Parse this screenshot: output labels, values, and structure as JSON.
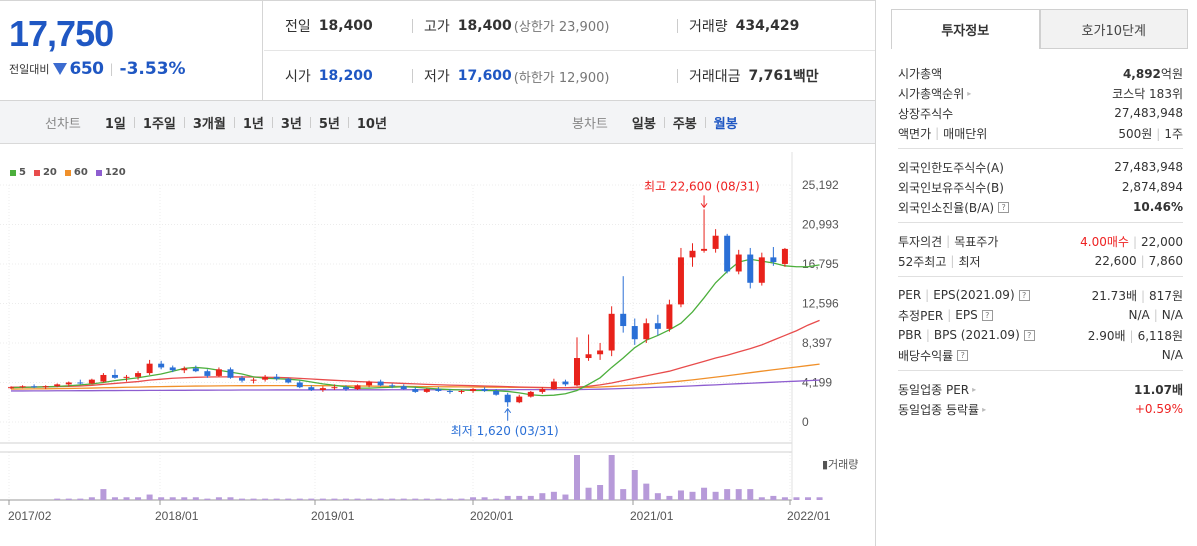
{
  "quote": {
    "price": "17,750",
    "diff_label": "전일대비",
    "diff_amount": "650",
    "diff_pct": "-3.53%",
    "prev_close_label": "전일",
    "prev_close": "18,400",
    "high_label": "고가",
    "high": "18,400",
    "upper_limit": "(상한가 23,900)",
    "volume_label": "거래량",
    "volume": "434,429",
    "open_label": "시가",
    "open": "18,200",
    "low_label": "저가",
    "low": "17,600",
    "lower_limit": "(하한가 12,900)",
    "amount_label": "거래대금",
    "amount": "7,761",
    "amount_unit": "백만"
  },
  "line_chart_tabs": {
    "title": "선차트",
    "items": [
      "1일",
      "1주일",
      "3개월",
      "1년",
      "3년",
      "5년",
      "10년"
    ]
  },
  "candle_chart_tabs": {
    "title": "봉차트",
    "items": [
      "일봉",
      "주봉",
      "월봉"
    ],
    "selected": "월봉"
  },
  "chart_data": {
    "type": "candlestick",
    "moving_average_legend": [
      "5",
      "20",
      "60",
      "120"
    ],
    "ma_colors": [
      "#4caf3c",
      "#e84c4c",
      "#f0902a",
      "#8e5ed0"
    ],
    "y_ticks": [
      "25,192",
      "20,993",
      "16,795",
      "12,596",
      "8,397",
      "4,199",
      "0"
    ],
    "ylim": [
      0,
      25192
    ],
    "x_ticks": [
      "2017/02",
      "2018/01",
      "2019/01",
      "2020/01",
      "2021/01",
      "2022/01"
    ],
    "high_annotation": "최고 22,600 (08/31)",
    "low_annotation": "최저 1,620 (03/31)",
    "volume_label": "거래량",
    "candles": [
      {
        "o": 3600,
        "h": 3800,
        "l": 3500,
        "c": 3700
      },
      {
        "o": 3700,
        "h": 3900,
        "l": 3600,
        "c": 3800
      },
      {
        "o": 3800,
        "h": 4000,
        "l": 3600,
        "c": 3700
      },
      {
        "o": 3700,
        "h": 3900,
        "l": 3500,
        "c": 3800
      },
      {
        "o": 3800,
        "h": 4100,
        "l": 3700,
        "c": 4000
      },
      {
        "o": 4000,
        "h": 4300,
        "l": 3800,
        "c": 4200
      },
      {
        "o": 4200,
        "h": 4500,
        "l": 4000,
        "c": 4100
      },
      {
        "o": 4100,
        "h": 4600,
        "l": 4000,
        "c": 4500
      },
      {
        "o": 4300,
        "h": 5200,
        "l": 4200,
        "c": 5000
      },
      {
        "o": 5000,
        "h": 5600,
        "l": 4600,
        "c": 4700
      },
      {
        "o": 4700,
        "h": 5000,
        "l": 4300,
        "c": 4800
      },
      {
        "o": 4800,
        "h": 5400,
        "l": 4500,
        "c": 5200
      },
      {
        "o": 5200,
        "h": 6600,
        "l": 5000,
        "c": 6200
      },
      {
        "o": 6200,
        "h": 6500,
        "l": 5600,
        "c": 5800
      },
      {
        "o": 5800,
        "h": 6000,
        "l": 5300,
        "c": 5500
      },
      {
        "o": 5500,
        "h": 5900,
        "l": 5200,
        "c": 5700
      },
      {
        "o": 5700,
        "h": 6000,
        "l": 5300,
        "c": 5400
      },
      {
        "o": 5400,
        "h": 5600,
        "l": 4700,
        "c": 4900
      },
      {
        "o": 4900,
        "h": 5800,
        "l": 4800,
        "c": 5600
      },
      {
        "o": 5600,
        "h": 5800,
        "l": 4600,
        "c": 4700
      },
      {
        "o": 4700,
        "h": 4900,
        "l": 4200,
        "c": 4400
      },
      {
        "o": 4400,
        "h": 4700,
        "l": 4100,
        "c": 4500
      },
      {
        "o": 4500,
        "h": 5000,
        "l": 4300,
        "c": 4800
      },
      {
        "o": 4800,
        "h": 5100,
        "l": 4400,
        "c": 4600
      },
      {
        "o": 4600,
        "h": 4700,
        "l": 4100,
        "c": 4200
      },
      {
        "o": 4200,
        "h": 4400,
        "l": 3600,
        "c": 3700
      },
      {
        "o": 3700,
        "h": 3900,
        "l": 3300,
        "c": 3400
      },
      {
        "o": 3400,
        "h": 3800,
        "l": 3200,
        "c": 3600
      },
      {
        "o": 3600,
        "h": 4000,
        "l": 3400,
        "c": 3700
      },
      {
        "o": 3700,
        "h": 3900,
        "l": 3300,
        "c": 3500
      },
      {
        "o": 3500,
        "h": 4000,
        "l": 3400,
        "c": 3900
      },
      {
        "o": 3900,
        "h": 4400,
        "l": 3700,
        "c": 4300
      },
      {
        "o": 4300,
        "h": 4500,
        "l": 3800,
        "c": 3900
      },
      {
        "o": 3900,
        "h": 4100,
        "l": 3600,
        "c": 3800
      },
      {
        "o": 3800,
        "h": 4000,
        "l": 3400,
        "c": 3500
      },
      {
        "o": 3500,
        "h": 3700,
        "l": 3100,
        "c": 3200
      },
      {
        "o": 3200,
        "h": 3600,
        "l": 3100,
        "c": 3500
      },
      {
        "o": 3500,
        "h": 3700,
        "l": 3200,
        "c": 3300
      },
      {
        "o": 3300,
        "h": 3500,
        "l": 3000,
        "c": 3200
      },
      {
        "o": 3200,
        "h": 3400,
        "l": 3000,
        "c": 3300
      },
      {
        "o": 3300,
        "h": 3600,
        "l": 3100,
        "c": 3500
      },
      {
        "o": 3500,
        "h": 3700,
        "l": 3200,
        "c": 3300
      },
      {
        "o": 3300,
        "h": 3500,
        "l": 2800,
        "c": 2900
      },
      {
        "o": 2900,
        "h": 3100,
        "l": 1620,
        "c": 2100
      },
      {
        "o": 2100,
        "h": 2900,
        "l": 2000,
        "c": 2700
      },
      {
        "o": 2700,
        "h": 3300,
        "l": 2600,
        "c": 3200
      },
      {
        "o": 3200,
        "h": 3700,
        "l": 3000,
        "c": 3500
      },
      {
        "o": 3500,
        "h": 4600,
        "l": 3400,
        "c": 4300
      },
      {
        "o": 4300,
        "h": 4500,
        "l": 3800,
        "c": 4000
      },
      {
        "o": 3900,
        "h": 9000,
        "l": 3800,
        "c": 6800
      },
      {
        "o": 6800,
        "h": 9300,
        "l": 6500,
        "c": 7200
      },
      {
        "o": 7200,
        "h": 8400,
        "l": 6600,
        "c": 7600
      },
      {
        "o": 7600,
        "h": 12300,
        "l": 7000,
        "c": 11500
      },
      {
        "o": 11500,
        "h": 15500,
        "l": 9500,
        "c": 10200
      },
      {
        "o": 10200,
        "h": 11000,
        "l": 8200,
        "c": 8800
      },
      {
        "o": 8800,
        "h": 11000,
        "l": 8400,
        "c": 10500
      },
      {
        "o": 10500,
        "h": 11400,
        "l": 9200,
        "c": 9900
      },
      {
        "o": 9900,
        "h": 13000,
        "l": 9600,
        "c": 12500
      },
      {
        "o": 12500,
        "h": 18500,
        "l": 12200,
        "c": 17500
      },
      {
        "o": 17500,
        "h": 19000,
        "l": 16500,
        "c": 18200
      },
      {
        "o": 18200,
        "h": 22600,
        "l": 18000,
        "c": 18400
      },
      {
        "o": 18400,
        "h": 20500,
        "l": 18000,
        "c": 19800
      },
      {
        "o": 19800,
        "h": 20000,
        "l": 15800,
        "c": 16000
      },
      {
        "o": 16000,
        "h": 18300,
        "l": 15700,
        "c": 17800
      },
      {
        "o": 17800,
        "h": 18500,
        "l": 14200,
        "c": 14800
      },
      {
        "o": 14800,
        "h": 18000,
        "l": 14500,
        "c": 17500
      },
      {
        "o": 17500,
        "h": 18600,
        "l": 16600,
        "c": 17000
      },
      {
        "o": 16800,
        "h": 18500,
        "l": 16500,
        "c": 18400
      }
    ],
    "volumes": [
      0,
      0,
      0,
      0,
      1,
      1,
      1,
      2,
      8,
      2,
      2,
      2,
      4,
      2,
      2,
      2,
      2,
      1,
      2,
      2,
      1,
      1,
      1,
      1,
      1,
      1,
      1,
      1,
      1,
      1,
      1,
      1,
      1,
      1,
      1,
      1,
      1,
      1,
      1,
      1,
      2,
      2,
      1,
      3,
      3,
      3,
      5,
      6,
      4,
      33,
      9,
      11,
      33,
      8,
      22,
      12,
      5,
      3,
      7,
      6,
      9,
      6,
      8,
      8,
      8,
      2,
      3,
      2,
      2,
      2,
      2
    ],
    "ma20": [
      3700,
      3710,
      3720,
      3740,
      3760,
      3790,
      3830,
      3900,
      4000,
      4100,
      4200,
      4300,
      4450,
      4550,
      4650,
      4700,
      4750,
      4780,
      4800,
      4800,
      4790,
      4780,
      4760,
      4740,
      4700,
      4640,
      4570,
      4500,
      4430,
      4370,
      4300,
      4250,
      4200,
      4150,
      4100,
      4050,
      4000,
      3960,
      3920,
      3890,
      3860,
      3830,
      3800,
      3760,
      3720,
      3690,
      3660,
      3640,
      3640,
      3700,
      3800,
      3950,
      4150,
      4400,
      4650,
      4900,
      5150,
      5400,
      5750,
      6100,
      6450,
      6800,
      7100,
      7450,
      7800,
      8200,
      8700,
      9200,
      9700,
      10300,
      10800
    ],
    "ma60": [
      3500,
      3510,
      3520,
      3530,
      3550,
      3570,
      3590,
      3610,
      3640,
      3660,
      3690,
      3710,
      3740,
      3760,
      3780,
      3800,
      3820,
      3830,
      3840,
      3850,
      3860,
      3860,
      3870,
      3870,
      3870,
      3870,
      3870,
      3860,
      3850,
      3840,
      3830,
      3820,
      3800,
      3790,
      3780,
      3770,
      3760,
      3750,
      3740,
      3730,
      3720,
      3710,
      3700,
      3690,
      3680,
      3670,
      3660,
      3650,
      3640,
      3650,
      3680,
      3720,
      3780,
      3850,
      3930,
      4020,
      4120,
      4230,
      4350,
      4480,
      4620,
      4770,
      4920,
      5080,
      5240,
      5400,
      5550,
      5700,
      5850,
      6000,
      6150
    ],
    "ma120": [
      3300,
      3300,
      3310,
      3310,
      3320,
      3320,
      3330,
      3330,
      3340,
      3340,
      3350,
      3350,
      3360,
      3360,
      3370,
      3370,
      3380,
      3380,
      3390,
      3390,
      3400,
      3400,
      3400,
      3410,
      3410,
      3410,
      3410,
      3420,
      3420,
      3420,
      3420,
      3420,
      3420,
      3430,
      3430,
      3430,
      3430,
      3430,
      3430,
      3430,
      3430,
      3430,
      3430,
      3430,
      3440,
      3440,
      3440,
      3440,
      3440,
      3450,
      3470,
      3490,
      3520,
      3560,
      3600,
      3640,
      3690,
      3740,
      3790,
      3840,
      3900,
      3950,
      4010,
      4070,
      4120,
      4180,
      4230,
      4290,
      4340,
      4400,
      4450
    ],
    "ma5": [
      3650,
      3680,
      3710,
      3740,
      3780,
      3850,
      3950,
      4050,
      4200,
      4400,
      4550,
      4700,
      4900,
      5100,
      5400,
      5700,
      5800,
      5700,
      5500,
      5300,
      5100,
      4800,
      4650,
      4600,
      4550,
      4450,
      4250,
      4050,
      3900,
      3750,
      3600,
      3600,
      3650,
      3700,
      3750,
      3700,
      3600,
      3500,
      3450,
      3400,
      3350,
      3350,
      3330,
      3250,
      3100,
      2900,
      2800,
      2850,
      3000,
      3350,
      4000,
      4700,
      5800,
      6800,
      7900,
      8700,
      9200,
      9800,
      10500,
      11700,
      13200,
      14800,
      16000,
      17000,
      17300,
      17100,
      16900,
      16600,
      16500,
      16500,
      16700
    ]
  },
  "invest_tabs": [
    "투자정보",
    "호가10단계"
  ],
  "invest_info": {
    "sec1": [
      {
        "k": "시가총액",
        "v": "4,892",
        "unit": "억원"
      },
      {
        "k": "시가총액순위",
        "v": "코스닥 183위",
        "arrow": true
      },
      {
        "k": "상장주식수",
        "v": "27,483,948"
      },
      {
        "k": "액면가",
        "k2": "매매단위",
        "v": "500원",
        "v2": "1주"
      }
    ],
    "sec2": [
      {
        "k": "외국인한도주식수(A)",
        "v": "27,483,948"
      },
      {
        "k": "외국인보유주식수(B)",
        "v": "2,874,894"
      },
      {
        "k": "외국인소진율(B/A)",
        "v": "10.46%",
        "bold": true,
        "q": true
      }
    ],
    "sec3": [
      {
        "k": "투자의견",
        "k2": "목표주가",
        "v": "4.00매수",
        "v2": "22,000"
      },
      {
        "k": "52주최고",
        "k2": "최저",
        "v": "22,600",
        "v2": "7,860"
      }
    ],
    "sec4": [
      {
        "k": "PER",
        "k2": "EPS(2021.09)",
        "v": "21.73배",
        "v2": "817원"
      },
      {
        "k": "추정PER",
        "k2": "EPS",
        "v": "N/A",
        "v2": "N/A"
      },
      {
        "k": "PBR",
        "k2": "BPS (2021.09)",
        "v": "2.90배",
        "v2": "6,118원"
      },
      {
        "k": "배당수익률",
        "v": "N/A"
      }
    ],
    "sec5": [
      {
        "k": "동일업종 PER",
        "v": "11.07배"
      },
      {
        "k": "동일업종 등락률",
        "v": "+0.59%"
      }
    ]
  }
}
